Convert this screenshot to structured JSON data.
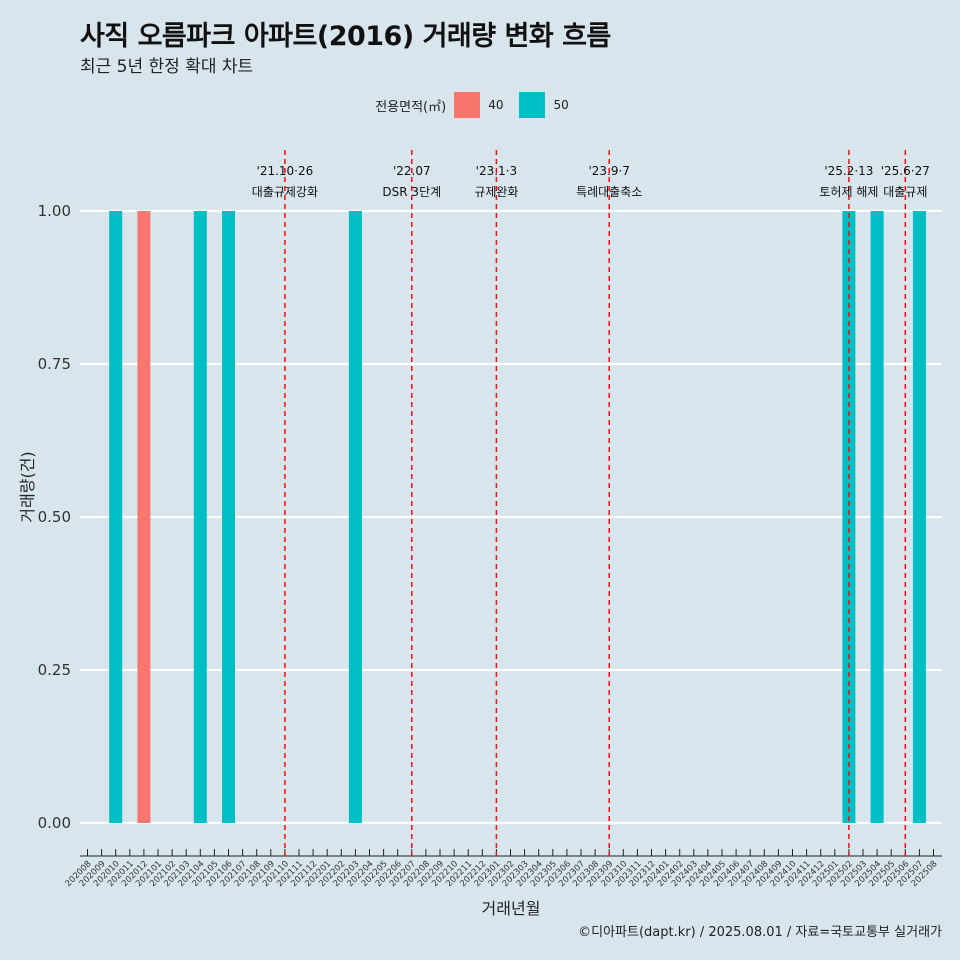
{
  "title": "사직 오름파크 아파트(2016) 거래량 변화 흐름",
  "subtitle": "최근 5년 한정 확대 차트",
  "caption": "©디아파트(dapt.kr) / 2025.08.01 / 자료=국토교통부 실거래가",
  "legend": {
    "title": "전용면적(㎡)",
    "items": [
      {
        "label": "40",
        "color": "#f8766d"
      },
      {
        "label": "50",
        "color": "#00bfc4"
      }
    ]
  },
  "chart_data": {
    "type": "bar",
    "xlabel": "거래년월",
    "ylabel": "거래량(건)",
    "ylim": [
      0,
      1.0
    ],
    "y_ticks": [
      "0.00",
      "0.25",
      "0.50",
      "0.75",
      "1.00"
    ],
    "categories": [
      "202008",
      "202009",
      "202010",
      "202011",
      "202012",
      "202101",
      "202102",
      "202103",
      "202104",
      "202105",
      "202106",
      "202107",
      "202108",
      "202109",
      "202110",
      "202111",
      "202112",
      "202201",
      "202202",
      "202203",
      "202204",
      "202205",
      "202206",
      "202207",
      "202208",
      "202209",
      "202210",
      "202211",
      "202212",
      "202301",
      "202302",
      "202303",
      "202304",
      "202305",
      "202306",
      "202307",
      "202308",
      "202309",
      "202310",
      "202311",
      "202312",
      "202401",
      "202402",
      "202403",
      "202404",
      "202405",
      "202406",
      "202407",
      "202408",
      "202409",
      "202410",
      "202411",
      "202412",
      "202501",
      "202502",
      "202503",
      "202504",
      "202505",
      "202506",
      "202507",
      "202508"
    ],
    "bars": [
      {
        "x": "202010",
        "value": 1,
        "series": "50"
      },
      {
        "x": "202012",
        "value": 1,
        "series": "40"
      },
      {
        "x": "202104",
        "value": 1,
        "series": "50"
      },
      {
        "x": "202106",
        "value": 1,
        "series": "50"
      },
      {
        "x": "202203",
        "value": 1,
        "series": "50"
      },
      {
        "x": "202502",
        "value": 1,
        "series": "50"
      },
      {
        "x": "202504",
        "value": 1,
        "series": "50"
      },
      {
        "x": "202507",
        "value": 1,
        "series": "50"
      }
    ],
    "annotations": [
      {
        "x": "202110",
        "date": "'21.10·26",
        "label": "대출규제강화"
      },
      {
        "x": "202207",
        "date": "'22.07",
        "label": "DSR 3단계"
      },
      {
        "x": "202301",
        "date": "'23.1·3",
        "label": "규제완화"
      },
      {
        "x": "202309",
        "date": "'23.9·7",
        "label": "특례대출축소"
      },
      {
        "x": "202502",
        "date": "'25.2·13",
        "label": "토허제 해제"
      },
      {
        "x": "202506",
        "date": "'25.6·27",
        "label": "대출규제"
      }
    ],
    "grid": true,
    "legend_position": "top"
  }
}
